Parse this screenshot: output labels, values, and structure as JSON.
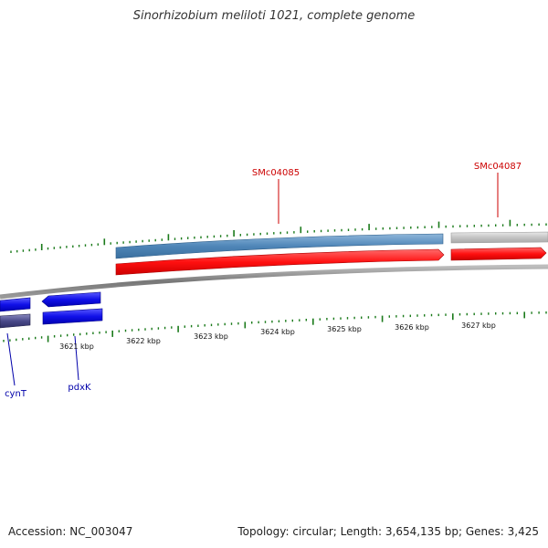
{
  "title": "Sinorhizobium meliloti 1021, complete genome",
  "footer": {
    "accession": "Accession: NC_003047",
    "summary": "Topology: circular; Length: 3,654,135 bp; Genes: 3,425"
  },
  "colors": {
    "minor_tick": "#1a7a1a",
    "backbone": "#8a8a8a",
    "forward_label": "#cc0000",
    "reverse_label": "#0000aa",
    "forward_gene": "#ff1a1a",
    "reverse_gene": "#1010e0",
    "cds_blue": "#5b8fbf",
    "cds_gray": "#c8c8c8",
    "cds_dark": "#4a4a8a"
  },
  "scale_labels": [
    "3621 kbp",
    "3622 kbp",
    "3623 kbp",
    "3624 kbp",
    "3625 kbp",
    "3626 kbp",
    "3627 kbp"
  ],
  "genes": [
    {
      "name": "SMc04085",
      "strand": "forward"
    },
    {
      "name": "SMc04087",
      "strand": "forward"
    },
    {
      "name": "cynT",
      "strand": "reverse"
    },
    {
      "name": "pdxK",
      "strand": "reverse"
    }
  ]
}
